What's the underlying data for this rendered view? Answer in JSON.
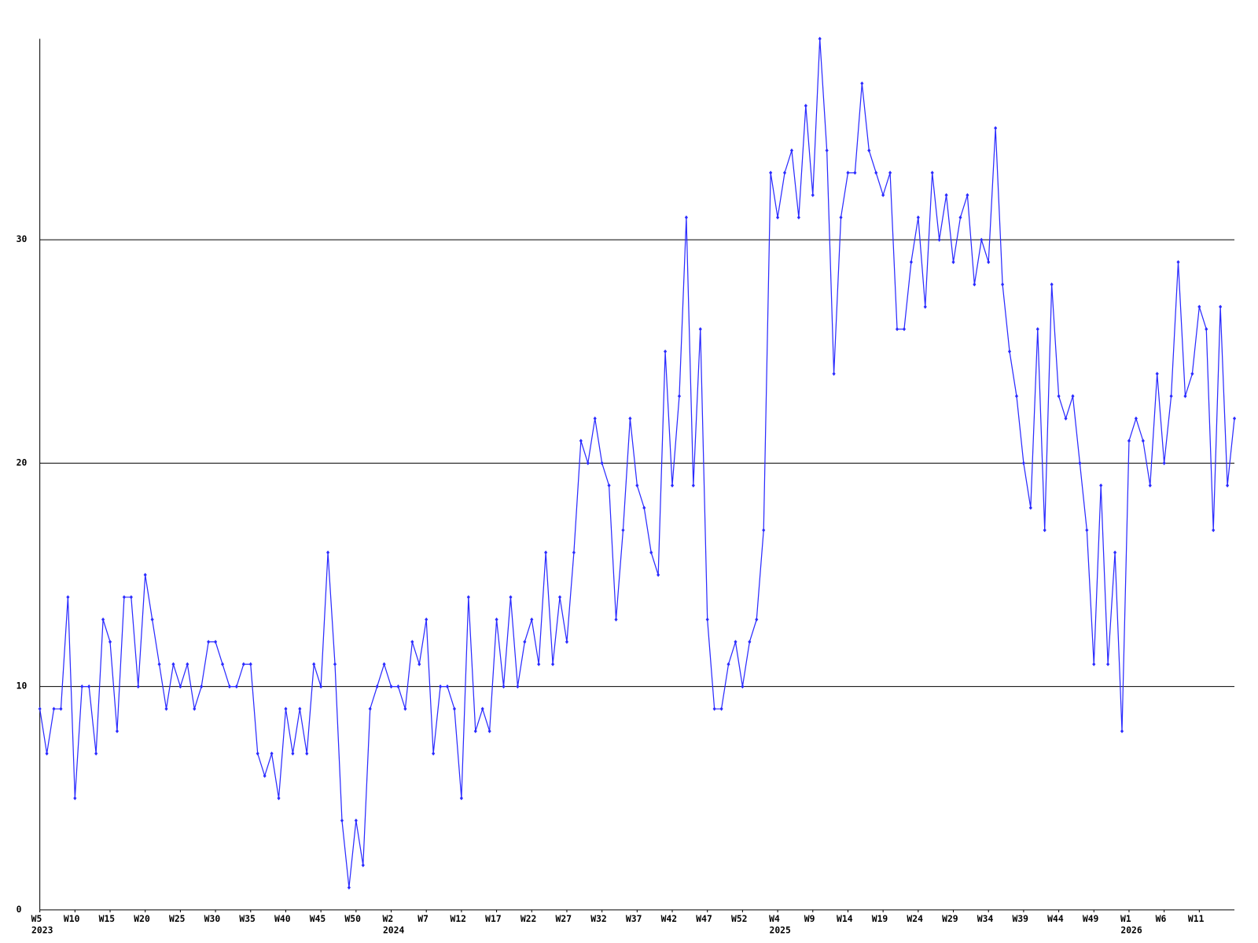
{
  "chart_data": {
    "type": "line",
    "color": "#2b2bff",
    "grid": true,
    "ylim": [
      0,
      39
    ],
    "yticks": [
      0,
      10,
      20,
      30
    ],
    "categories": [
      "W5",
      null,
      null,
      null,
      null,
      "W10",
      null,
      null,
      null,
      null,
      "W15",
      null,
      null,
      null,
      null,
      "W20",
      null,
      null,
      null,
      null,
      "W25",
      null,
      null,
      null,
      null,
      "W30",
      null,
      null,
      null,
      null,
      "W35",
      null,
      null,
      null,
      null,
      "W40",
      null,
      null,
      null,
      null,
      "W45",
      null,
      null,
      null,
      null,
      "W50",
      null,
      null,
      null,
      null,
      "W2",
      null,
      null,
      null,
      null,
      "W7",
      null,
      null,
      null,
      null,
      "W12",
      null,
      null,
      null,
      null,
      "W17",
      null,
      null,
      null,
      null,
      "W22",
      null,
      null,
      null,
      null,
      "W27",
      null,
      null,
      null,
      null,
      "W32",
      null,
      null,
      null,
      null,
      "W37",
      null,
      null,
      null,
      null,
      "W42",
      null,
      null,
      null,
      null,
      "W47",
      null,
      null,
      null,
      null,
      "W52",
      null,
      null,
      null,
      null,
      "W4",
      null,
      null,
      null,
      null,
      "W9",
      null,
      null,
      null,
      null,
      "W14",
      null,
      null,
      null,
      null,
      "W19",
      null,
      null,
      null,
      null,
      "W24",
      null,
      null,
      null,
      null,
      "W29",
      null,
      null,
      null,
      null,
      "W34",
      null,
      null,
      null,
      null,
      "W39",
      null,
      null,
      null,
      null,
      "W44",
      null,
      null,
      null,
      null,
      "W49",
      null,
      null,
      null,
      null,
      "W1",
      null,
      null,
      null,
      null,
      "W6",
      null,
      null,
      null,
      null,
      "W11",
      null,
      null,
      null,
      null,
      null
    ],
    "category_years": [
      "2023",
      null,
      null,
      null,
      null,
      null,
      null,
      null,
      null,
      null,
      null,
      null,
      null,
      null,
      null,
      null,
      null,
      null,
      null,
      null,
      null,
      null,
      null,
      null,
      null,
      null,
      null,
      null,
      null,
      null,
      null,
      null,
      null,
      null,
      null,
      null,
      null,
      null,
      null,
      null,
      null,
      null,
      null,
      null,
      null,
      null,
      null,
      null,
      null,
      null,
      "2024",
      null,
      null,
      null,
      null,
      null,
      null,
      null,
      null,
      null,
      null,
      null,
      null,
      null,
      null,
      null,
      null,
      null,
      null,
      null,
      null,
      null,
      null,
      null,
      null,
      null,
      null,
      null,
      null,
      null,
      null,
      null,
      null,
      null,
      null,
      null,
      null,
      null,
      null,
      null,
      null,
      null,
      null,
      null,
      null,
      null,
      null,
      null,
      null,
      null,
      null,
      null,
      null,
      null,
      null,
      "2025",
      null,
      null,
      null,
      null,
      null,
      null,
      null,
      null,
      null,
      null,
      null,
      null,
      null,
      null,
      null,
      null,
      null,
      null,
      null,
      null,
      null,
      null,
      null,
      null,
      null,
      null,
      null,
      null,
      null,
      null,
      null,
      null,
      null,
      null,
      null,
      null,
      null,
      null,
      null,
      null,
      null,
      null,
      null,
      null,
      null,
      null,
      null,
      null,
      null,
      "2026",
      null,
      null,
      null,
      null,
      null,
      null,
      null,
      null,
      null,
      null,
      null,
      null,
      null,
      null,
      null
    ],
    "values": [
      9,
      7,
      9,
      9,
      14,
      5,
      10,
      10,
      7,
      13,
      12,
      8,
      14,
      14,
      10,
      15,
      13,
      11,
      9,
      11,
      10,
      11,
      9,
      10,
      12,
      12,
      11,
      10,
      10,
      11,
      11,
      7,
      6,
      7,
      5,
      9,
      7,
      9,
      7,
      11,
      10,
      16,
      11,
      4,
      1,
      4,
      2,
      9,
      10,
      11,
      10,
      10,
      9,
      12,
      11,
      13,
      7,
      10,
      10,
      9,
      5,
      14,
      8,
      9,
      8,
      13,
      10,
      14,
      10,
      12,
      13,
      11,
      16,
      11,
      14,
      12,
      16,
      21,
      20,
      22,
      20,
      19,
      13,
      17,
      22,
      19,
      18,
      16,
      15,
      25,
      19,
      23,
      31,
      19,
      26,
      13,
      9,
      9,
      11,
      12,
      10,
      12,
      13,
      17,
      33,
      31,
      33,
      34,
      31,
      36,
      32,
      39,
      34,
      24,
      31,
      33,
      33,
      37,
      34,
      33,
      32,
      33,
      26,
      26,
      29,
      31,
      27,
      33,
      30,
      32,
      29,
      31,
      32,
      28,
      30,
      29,
      35,
      28,
      25,
      23,
      20,
      18,
      26,
      17,
      28,
      23,
      22,
      23,
      20,
      17,
      11,
      19,
      11,
      16,
      8,
      21,
      22,
      21,
      19,
      24,
      20,
      23,
      29,
      23,
      24,
      27,
      26,
      17,
      27,
      19,
      22
    ]
  }
}
